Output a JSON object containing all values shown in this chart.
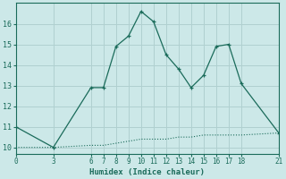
{
  "xlabel": "Humidex (Indice chaleur)",
  "ylabel": "",
  "bg_color": "#cce8e8",
  "grid_color": "#b0d0d0",
  "line_color": "#1a6b5a",
  "marker_color": "#1a6b5a",
  "xlim": [
    0,
    21
  ],
  "ylim": [
    9.7,
    17.0
  ],
  "xticks": [
    0,
    3,
    6,
    7,
    8,
    9,
    10,
    11,
    12,
    13,
    14,
    15,
    16,
    17,
    18,
    21
  ],
  "yticks": [
    10,
    11,
    12,
    13,
    14,
    15,
    16
  ],
  "series1_x": [
    0,
    3,
    6,
    7,
    8,
    9,
    10,
    11,
    12,
    13,
    14,
    15,
    16,
    17,
    18,
    21
  ],
  "series1_y": [
    11.0,
    10.0,
    12.9,
    12.9,
    14.9,
    15.4,
    16.6,
    16.1,
    14.5,
    13.8,
    12.9,
    13.5,
    14.9,
    15.0,
    13.1,
    10.7
  ],
  "series2_x": [
    0,
    3,
    6,
    7,
    8,
    9,
    10,
    11,
    12,
    13,
    14,
    15,
    16,
    17,
    18,
    21
  ],
  "series2_y": [
    10.0,
    10.0,
    10.1,
    10.1,
    10.2,
    10.3,
    10.4,
    10.4,
    10.4,
    10.5,
    10.5,
    10.6,
    10.6,
    10.6,
    10.6,
    10.7
  ]
}
